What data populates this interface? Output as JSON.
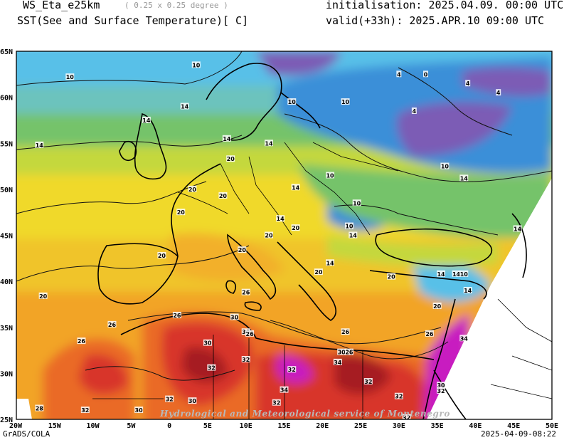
{
  "header": {
    "model": "WS_Eta_e25km",
    "resolution": "( 0.25 x 0.25 degree )",
    "variable": "SST(See and Surface Temperature)[ C]",
    "initialisation": "initialisation: 2025.04.09. 00:00 UTC",
    "valid": "valid(+33h): 2025.APR.10 09:00 UTC"
  },
  "axes": {
    "lon_labels": [
      "20W",
      "15W",
      "10W",
      "5W",
      "0",
      "5E",
      "10E",
      "15E",
      "20E",
      "25E",
      "30E",
      "35E",
      "40E",
      "45E",
      "50E"
    ],
    "lat_labels": [
      "65N",
      "60N",
      "55N",
      "50N",
      "45N",
      "40N",
      "35N",
      "30N",
      "25N"
    ]
  },
  "map": {
    "extent_lon": [
      -20,
      50
    ],
    "extent_lat": [
      25,
      65
    ],
    "contour_levels": [
      4,
      10,
      14,
      20,
      26,
      32
    ],
    "palette": {
      "cold_purple": "#7b5bb5",
      "blue": "#3a8fd8",
      "light_blue": "#58c0e8",
      "teal": "#6cc3bd",
      "green": "#74c36a",
      "yellow_green": "#c4d83c",
      "yellow": "#f0d92c",
      "orange": "#f2a426",
      "orange_red": "#ea6a28",
      "red": "#d8342a",
      "dark_red": "#a61e22",
      "magenta": "#c81ec0"
    },
    "contour_labels": [
      {
        "value": "10",
        "lon": -13,
        "lat": 62.2
      },
      {
        "value": "10",
        "lon": 3.5,
        "lat": 63.5
      },
      {
        "value": "4",
        "lon": 30,
        "lat": 62.5
      },
      {
        "value": "0",
        "lon": 33.5,
        "lat": 62.5
      },
      {
        "value": "4",
        "lon": 39,
        "lat": 61.5
      },
      {
        "value": "4",
        "lon": 43,
        "lat": 60.5
      },
      {
        "value": "14",
        "lon": 2,
        "lat": 59
      },
      {
        "value": "10",
        "lon": 16,
        "lat": 59.5
      },
      {
        "value": "10",
        "lon": 23,
        "lat": 59.5
      },
      {
        "value": "4",
        "lon": 32,
        "lat": 58.5
      },
      {
        "value": "14",
        "lon": -17,
        "lat": 54.8
      },
      {
        "value": "14",
        "lon": -3,
        "lat": 57.5
      },
      {
        "value": "14",
        "lon": 7.5,
        "lat": 55.5
      },
      {
        "value": "14",
        "lon": 13,
        "lat": 55
      },
      {
        "value": "20",
        "lon": 8,
        "lat": 53.3
      },
      {
        "value": "10",
        "lon": 21,
        "lat": 51.5
      },
      {
        "value": "10",
        "lon": 36,
        "lat": 52.5
      },
      {
        "value": "14",
        "lon": 38.5,
        "lat": 51.2
      },
      {
        "value": "14",
        "lon": 16.5,
        "lat": 50.2
      },
      {
        "value": "20",
        "lon": 3,
        "lat": 50
      },
      {
        "value": "20",
        "lon": 7,
        "lat": 49.3
      },
      {
        "value": "20",
        "lon": 1.5,
        "lat": 47.5
      },
      {
        "value": "10",
        "lon": 24.5,
        "lat": 48.5
      },
      {
        "value": "14",
        "lon": 14.5,
        "lat": 46.8
      },
      {
        "value": "20",
        "lon": 16.5,
        "lat": 45.8
      },
      {
        "value": "10",
        "lon": 23.5,
        "lat": 46
      },
      {
        "value": "14",
        "lon": 24,
        "lat": 45
      },
      {
        "value": "20",
        "lon": 13,
        "lat": 45
      },
      {
        "value": "20",
        "lon": 9.5,
        "lat": 43.4
      },
      {
        "value": "14",
        "lon": 45.5,
        "lat": 45.7
      },
      {
        "value": "20",
        "lon": -1,
        "lat": 42.8
      },
      {
        "value": "14",
        "lon": 21,
        "lat": 42
      },
      {
        "value": "20",
        "lon": 19.5,
        "lat": 41
      },
      {
        "value": "20",
        "lon": 29,
        "lat": 40.5
      },
      {
        "value": "14",
        "lon": 35.5,
        "lat": 40.8
      },
      {
        "value": "14",
        "lon": 37.5,
        "lat": 40.8
      },
      {
        "value": "10",
        "lon": 38.5,
        "lat": 40.8
      },
      {
        "value": "14",
        "lon": 39,
        "lat": 39
      },
      {
        "value": "20",
        "lon": -16.5,
        "lat": 38.4
      },
      {
        "value": "26",
        "lon": 10,
        "lat": 38.8
      },
      {
        "value": "20",
        "lon": 35,
        "lat": 37.3
      },
      {
        "value": "26",
        "lon": 1,
        "lat": 36.3
      },
      {
        "value": "30",
        "lon": 8.5,
        "lat": 36.1
      },
      {
        "value": "26",
        "lon": -7.5,
        "lat": 35.3
      },
      {
        "value": "30",
        "lon": 10,
        "lat": 34.5
      },
      {
        "value": "26",
        "lon": 10.5,
        "lat": 34.3
      },
      {
        "value": "26",
        "lon": 23,
        "lat": 34.5
      },
      {
        "value": "26",
        "lon": 34,
        "lat": 34.3
      },
      {
        "value": "26",
        "lon": -11.5,
        "lat": 33.5
      },
      {
        "value": "30",
        "lon": 5,
        "lat": 33.3
      },
      {
        "value": "34",
        "lon": 38.5,
        "lat": 33.8
      },
      {
        "value": "30",
        "lon": 22.5,
        "lat": 32.3
      },
      {
        "value": "26",
        "lon": 23.5,
        "lat": 32.3
      },
      {
        "value": "32",
        "lon": 10,
        "lat": 31.5
      },
      {
        "value": "34",
        "lon": 22,
        "lat": 31.2
      },
      {
        "value": "32",
        "lon": 5.5,
        "lat": 30.6
      },
      {
        "value": "32",
        "lon": 16,
        "lat": 30.4
      },
      {
        "value": "32",
        "lon": 26,
        "lat": 29.1
      },
      {
        "value": "30",
        "lon": 35.5,
        "lat": 28.7
      },
      {
        "value": "32",
        "lon": 35.5,
        "lat": 28.1
      },
      {
        "value": "34",
        "lon": 15,
        "lat": 28.2
      },
      {
        "value": "32",
        "lon": 30,
        "lat": 27.5
      },
      {
        "value": "32",
        "lon": 0,
        "lat": 27.2
      },
      {
        "value": "30",
        "lon": 3,
        "lat": 27
      },
      {
        "value": "32",
        "lon": 14,
        "lat": 26.8
      },
      {
        "value": "28",
        "lon": -17,
        "lat": 26.2
      },
      {
        "value": "32",
        "lon": -11,
        "lat": 26
      },
      {
        "value": "30",
        "lon": -4,
        "lat": 26
      },
      {
        "value": "32",
        "lon": 31,
        "lat": 25.2
      }
    ]
  },
  "credit": "Hydrological and Meteorological service of Montenegro",
  "footer": {
    "software": "GrADS/COLA",
    "timestamp": "2025-04-09-08:22"
  }
}
